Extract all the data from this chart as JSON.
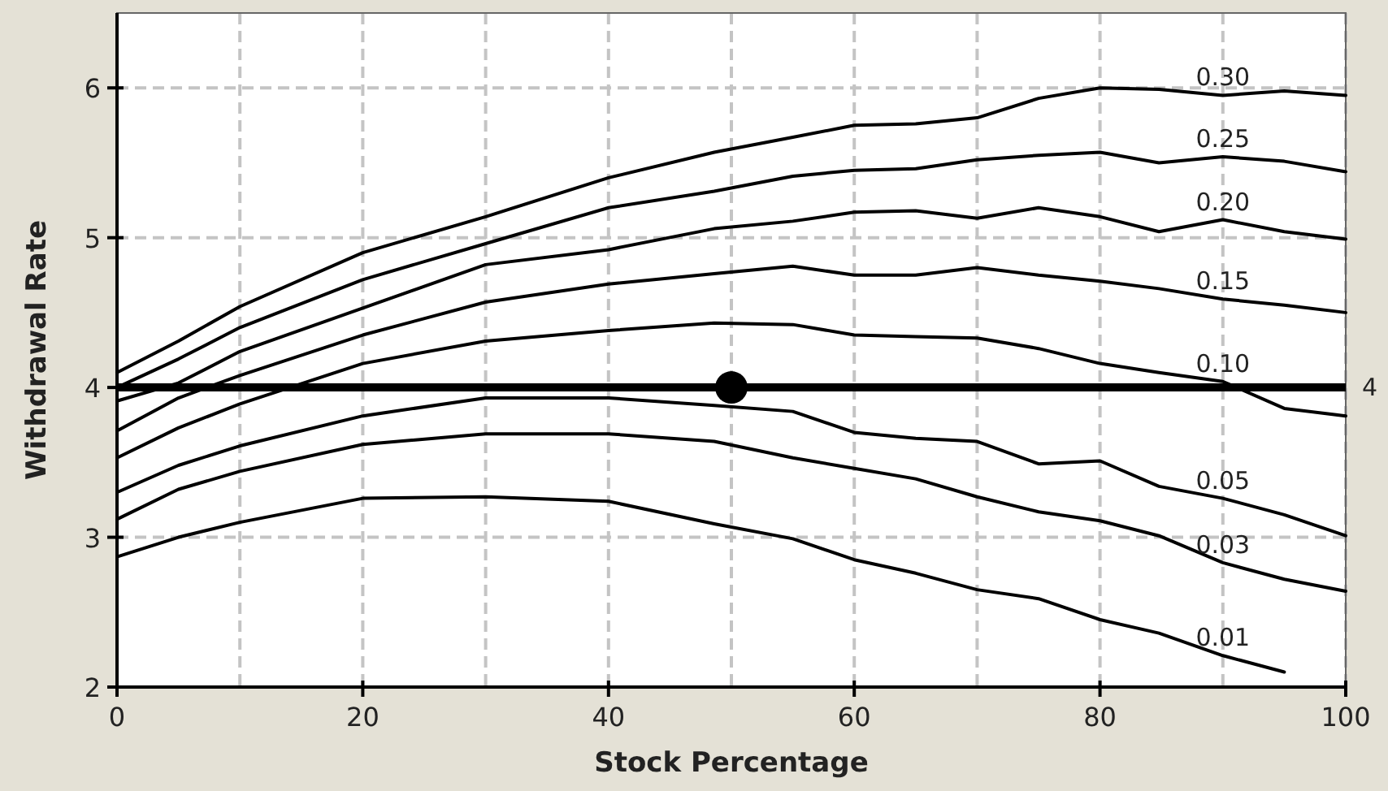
{
  "chart_data": {
    "type": "line",
    "xlabel": "Stock Percentage",
    "ylabel": "Withdrawal Rate",
    "x": [
      0,
      5,
      10,
      20,
      30,
      40,
      48.6,
      55,
      60,
      65,
      70,
      75,
      80,
      84.8,
      90,
      95,
      100
    ],
    "series": [
      {
        "name": "0.30",
        "color": "#000000",
        "values": [
          4.1,
          4.31,
          4.54,
          4.9,
          5.14,
          5.4,
          5.57,
          5.67,
          5.75,
          5.76,
          5.8,
          5.93,
          6.0,
          5.99,
          5.95,
          5.98,
          5.95
        ]
      },
      {
        "name": "0.25",
        "color": "#000000",
        "values": [
          4.0,
          4.19,
          4.4,
          4.72,
          4.96,
          5.2,
          5.31,
          5.41,
          5.45,
          5.46,
          5.52,
          5.55,
          5.57,
          5.5,
          5.54,
          5.51,
          5.44
        ]
      },
      {
        "name": "0.20",
        "color": "#000000",
        "values": [
          3.91,
          4.03,
          4.24,
          4.53,
          4.82,
          4.92,
          5.06,
          5.11,
          5.17,
          5.18,
          5.13,
          5.2,
          5.14,
          5.04,
          5.12,
          5.04,
          4.99
        ]
      },
      {
        "name": "0.15",
        "color": "#000000",
        "values": [
          3.71,
          3.93,
          4.08,
          4.35,
          4.57,
          4.69,
          4.76,
          4.81,
          4.75,
          4.75,
          4.8,
          4.75,
          4.71,
          4.66,
          4.59,
          4.55,
          4.5
        ]
      },
      {
        "name": "0.10",
        "color": "#000000",
        "values": [
          3.53,
          3.73,
          3.89,
          4.16,
          4.31,
          4.38,
          4.43,
          4.42,
          4.35,
          4.34,
          4.33,
          4.26,
          4.16,
          4.1,
          4.04,
          3.86,
          3.81
        ]
      },
      {
        "name": "0.05",
        "color": "#000000",
        "values": [
          3.3,
          3.48,
          3.61,
          3.81,
          3.93,
          3.93,
          3.88,
          3.84,
          3.7,
          3.66,
          3.64,
          3.49,
          3.51,
          3.34,
          3.26,
          3.15,
          3.01
        ]
      },
      {
        "name": "0.03",
        "color": "#000000",
        "values": [
          3.12,
          3.32,
          3.44,
          3.62,
          3.69,
          3.69,
          3.64,
          3.53,
          3.46,
          3.39,
          3.27,
          3.17,
          3.11,
          3.01,
          2.83,
          2.72,
          2.64
        ]
      },
      {
        "name": "0.01",
        "color": "#000000",
        "values": [
          2.87,
          3.0,
          3.1,
          3.26,
          3.27,
          3.24,
          3.09,
          2.99,
          2.85,
          2.76,
          2.65,
          2.59,
          2.45,
          2.36,
          2.21,
          2.1,
          null
        ]
      },
      {
        "type": "scatter",
        "color": "#000000",
        "x": [
          50
        ],
        "values": [
          4
        ],
        "marker": "circle"
      }
    ],
    "xlim": [
      0,
      100
    ],
    "ylim": [
      2,
      6.5
    ],
    "xticks": [
      0,
      {
        "value": 10,
        "label": null
      },
      20,
      {
        "value": 30,
        "label": null
      },
      40,
      {
        "value": 50,
        "label": null
      },
      60,
      {
        "value": 70,
        "label": null
      },
      80,
      {
        "value": 90,
        "label": null
      },
      100
    ],
    "yticks": [
      2,
      3,
      4,
      5,
      6
    ],
    "grid": true,
    "line_style": "solid",
    "marker": "none",
    "ref_lines": [
      {
        "axis": "y",
        "value": 4,
        "label": "4",
        "color": "#000000"
      }
    ]
  }
}
